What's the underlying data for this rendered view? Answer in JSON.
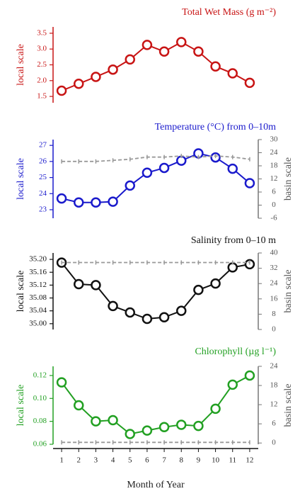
{
  "chart_data": [
    {
      "type": "line",
      "title": "Total Wet Mass (g m⁻²)",
      "ylabel": "local scale",
      "x": [
        1,
        2,
        3,
        4,
        5,
        6,
        7,
        8,
        9,
        10,
        11,
        12
      ],
      "xlim": [
        0.5,
        12.5
      ],
      "ylim": [
        1.3,
        3.7
      ],
      "yticks": [
        {
          "value": 1.5,
          "label": "1.5"
        },
        {
          "value": 2,
          "label": "2.0"
        },
        {
          "value": 2.5,
          "label": "2.5"
        },
        {
          "value": 3,
          "label": "3.0"
        },
        {
          "value": 3.5,
          "label": "3.5"
        }
      ],
      "series": [
        {
          "color": "#c81414",
          "values": [
            1.68,
            1.9,
            2.12,
            2.35,
            2.67,
            3.13,
            2.92,
            3.22,
            2.92,
            2.45,
            2.23,
            1.93
          ]
        }
      ]
    },
    {
      "type": "line",
      "title": "Temperature (°C) from 0–10m",
      "ylabel": "local scale",
      "y2label": "basin scale",
      "x": [
        1,
        2,
        3,
        4,
        5,
        6,
        7,
        8,
        9,
        10,
        11,
        12
      ],
      "xlim": [
        0.5,
        12.5
      ],
      "ylim": [
        22.47,
        27.36
      ],
      "yticks": [
        23,
        24,
        25,
        26,
        27
      ],
      "y2lim": [
        -6,
        30
      ],
      "y2ticks": [
        -6,
        0,
        6,
        12,
        18,
        24,
        30
      ],
      "series": [
        {
          "color": "#1a1acc",
          "values": [
            23.7,
            23.45,
            23.45,
            23.5,
            24.5,
            25.3,
            25.6,
            26.05,
            26.5,
            26.25,
            25.55,
            24.65
          ]
        },
        {
          "color": "#999999",
          "axis": "y2",
          "values": [
            20,
            20,
            20,
            20.5,
            21,
            22,
            22,
            22.5,
            22,
            22.5,
            22,
            21
          ]
        }
      ]
    },
    {
      "type": "line",
      "title": "Salinity from 0–10 m",
      "ylabel": "local scale",
      "y2label": "basin scale",
      "x": [
        1,
        2,
        3,
        4,
        5,
        6,
        7,
        8,
        9,
        10,
        11,
        12
      ],
      "xlim": [
        0.5,
        12.5
      ],
      "ylim": [
        34.982,
        35.22
      ],
      "yticks": [
        {
          "value": 35,
          "label": "35.00"
        },
        {
          "value": 35.04,
          "label": "35.04"
        },
        {
          "value": 35.08,
          "label": "35.08"
        },
        {
          "value": 35.12,
          "label": "35.12"
        },
        {
          "value": 35.16,
          "label": "35.16"
        },
        {
          "value": 35.2,
          "label": "35.20"
        }
      ],
      "y2lim": [
        0,
        40
      ],
      "y2ticks": [
        0,
        8,
        16,
        24,
        32,
        40
      ],
      "series": [
        {
          "color": "#111111",
          "values": [
            35.19,
            35.123,
            35.12,
            35.055,
            35.035,
            35.015,
            35.02,
            35.04,
            35.105,
            35.125,
            35.175,
            35.185
          ]
        },
        {
          "color": "#999999",
          "axis": "y2",
          "values": [
            35,
            35,
            35,
            35,
            35,
            35,
            35,
            35,
            35,
            35,
            35,
            35
          ]
        }
      ]
    },
    {
      "type": "line",
      "title": "Chlorophyll (µg l⁻¹)",
      "ylabel": "local scale",
      "y2label": "basin scale",
      "x": [
        1,
        2,
        3,
        4,
        5,
        6,
        7,
        8,
        9,
        10,
        11,
        12
      ],
      "xlim": [
        0.5,
        12.5
      ],
      "xticks": [
        1,
        2,
        3,
        4,
        5,
        6,
        7,
        8,
        9,
        10,
        11,
        12
      ],
      "xlabel": "Month of Year",
      "ylim": [
        0.06,
        0.128
      ],
      "yticks": [
        {
          "value": 0.06,
          "label": "0.06"
        },
        {
          "value": 0.08,
          "label": "0.08"
        },
        {
          "value": 0.1,
          "label": "0.10"
        },
        {
          "value": 0.12,
          "label": "0.12"
        }
      ],
      "y2lim": [
        -0.4,
        24
      ],
      "y2ticks": [
        0,
        6,
        12,
        18,
        24
      ],
      "series": [
        {
          "color": "#22a022",
          "values": [
            0.114,
            0.094,
            0.08,
            0.081,
            0.069,
            0.072,
            0.075,
            0.077,
            0.076,
            0.091,
            0.112,
            0.12
          ]
        },
        {
          "color": "#999999",
          "axis": "y2",
          "values": [
            0.2,
            0.2,
            0.2,
            0.2,
            0.2,
            0.2,
            0.2,
            0.2,
            0.2,
            0.2,
            0.2,
            0.2
          ]
        }
      ]
    }
  ]
}
